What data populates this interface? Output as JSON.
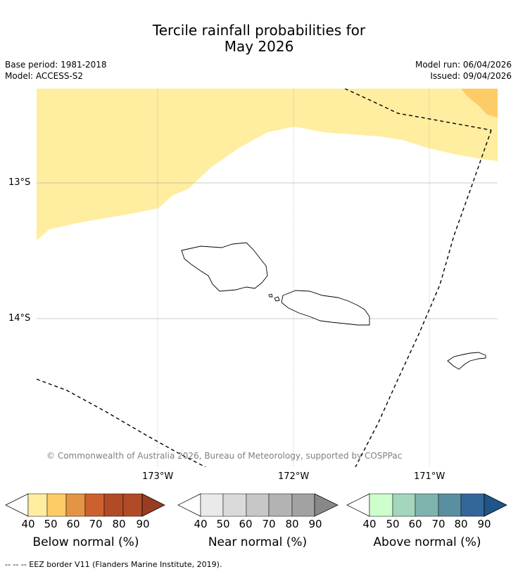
{
  "title": {
    "line1": "Tercile rainfall probabilities for",
    "line2": "May 2026"
  },
  "meta": {
    "base_period": "Base period: 1981-2018",
    "model": "Model: ACCESS-S2",
    "model_run": "Model run: 06/04/2026",
    "issued": "Issued: 09/04/2026"
  },
  "map": {
    "lat_labels": [
      "13°S",
      "14°S"
    ],
    "lon_labels": [
      "173°W",
      "172°W",
      "171°W"
    ],
    "copyright": "© Commonwealth of Australia 2026, Bureau of Meteorology, supported by COSPPac"
  },
  "colorbars": [
    {
      "label": "Below normal (%)",
      "ticks": [
        "40",
        "50",
        "60",
        "70",
        "80",
        "90"
      ],
      "colors": [
        "#ffeda0",
        "#fecc66",
        "#e39444",
        "#cc612f",
        "#b04a27",
        "#983c22"
      ]
    },
    {
      "label": "Near normal (%)",
      "ticks": [
        "40",
        "50",
        "60",
        "70",
        "80",
        "90"
      ],
      "colors": [
        "#eaeaea",
        "#dadada",
        "#c7c7c7",
        "#b3b3b3",
        "#a2a2a2",
        "#888888"
      ]
    },
    {
      "label": "Above normal (%)",
      "ticks": [
        "40",
        "50",
        "60",
        "70",
        "80",
        "90"
      ],
      "colors": [
        "#ccffcc",
        "#a3d6bd",
        "#7fb3ae",
        "#5a8fa0",
        "#336699",
        "#1f5588"
      ]
    }
  ],
  "footnote": "--  --  -- EEZ border V11 (Flanders Marine Institute, 2019)."
}
